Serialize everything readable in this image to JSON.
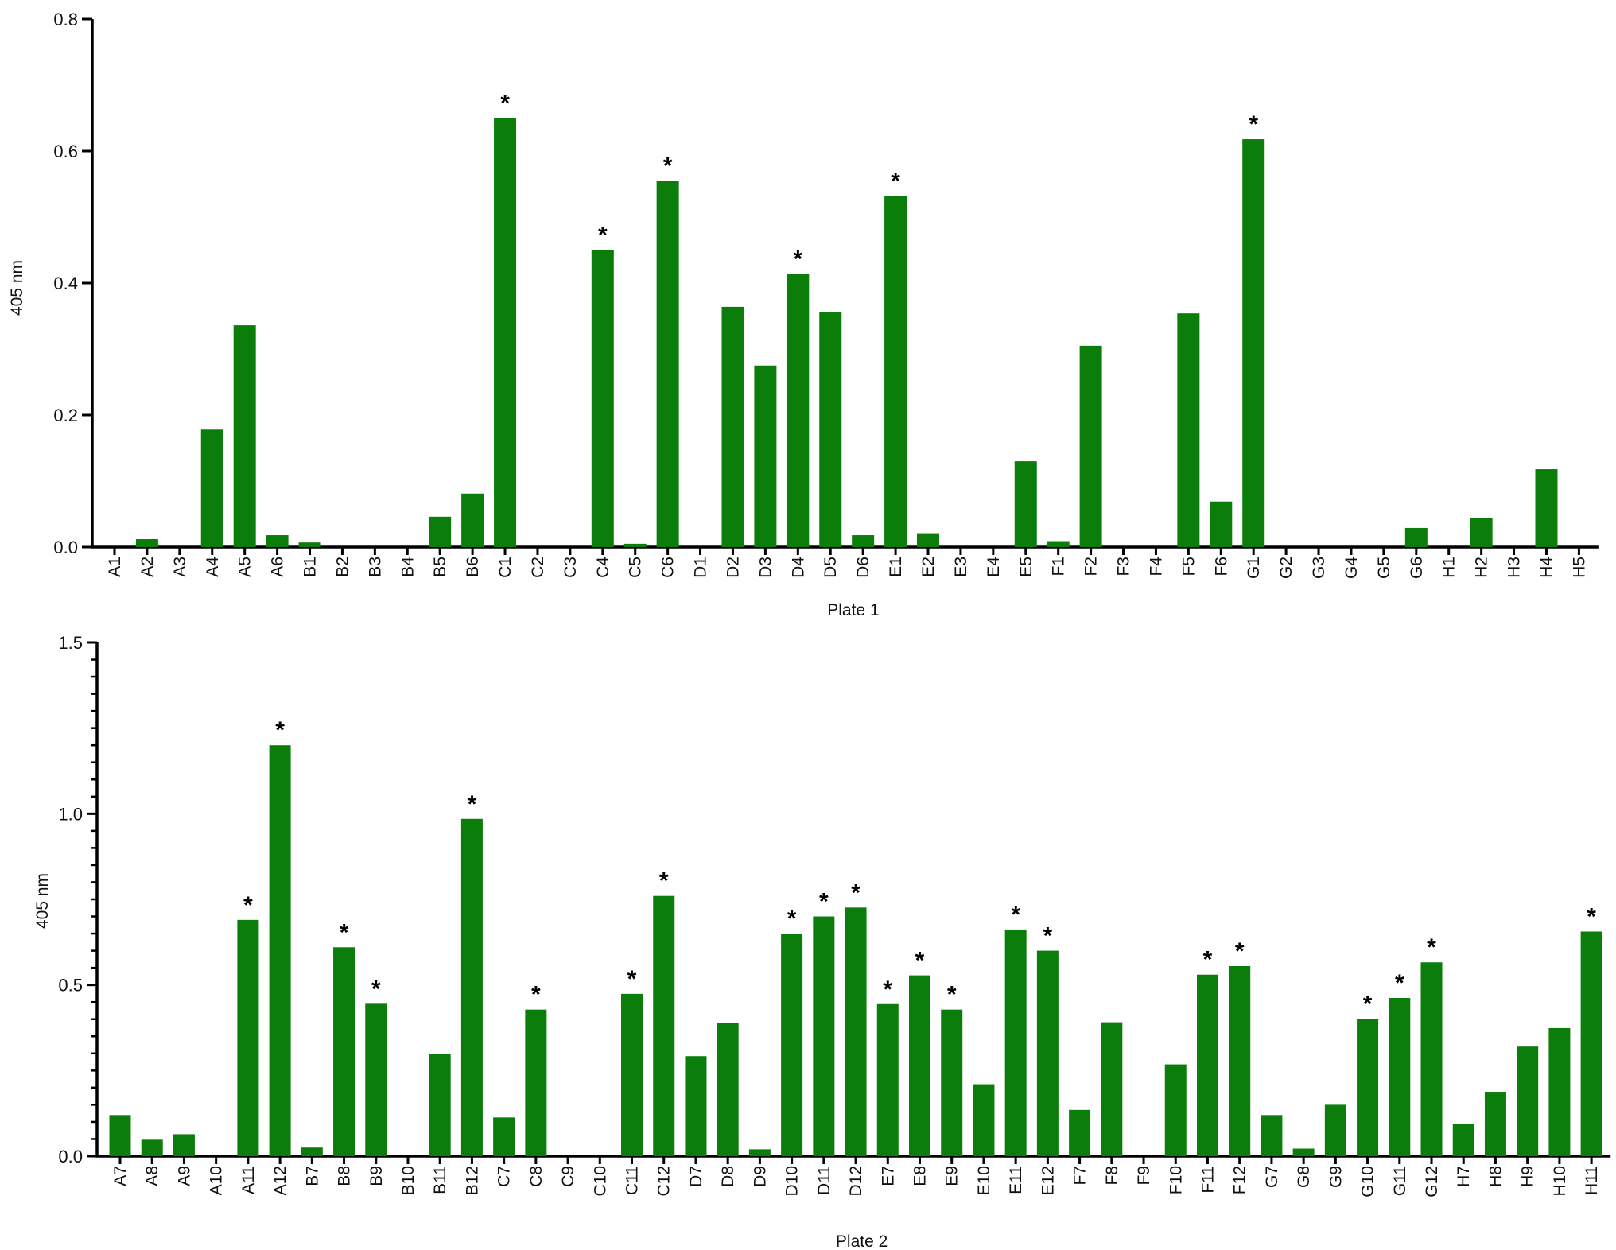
{
  "chart_data": [
    {
      "type": "bar",
      "title": "",
      "xlabel": "Plate 1",
      "ylabel": "405 nm",
      "ylim": [
        0,
        0.8
      ],
      "yticks": [
        0.0,
        0.2,
        0.4,
        0.6,
        0.8
      ],
      "ytick_labels": [
        "0.0",
        "0.2",
        "0.4",
        "0.6",
        "0.8"
      ],
      "bar_color": "#0a7d0a",
      "grid": false,
      "categories": [
        "A1",
        "A2",
        "A3",
        "A4",
        "A5",
        "A6",
        "B1",
        "B2",
        "B3",
        "B4",
        "B5",
        "B6",
        "C1",
        "C2",
        "C3",
        "C4",
        "C5",
        "C6",
        "D1",
        "D2",
        "D3",
        "D4",
        "D5",
        "D6",
        "E1",
        "E2",
        "E3",
        "E4",
        "E5",
        "F1",
        "F2",
        "F3",
        "F4",
        "F5",
        "F6",
        "G1",
        "G2",
        "G3",
        "G4",
        "G5",
        "G6",
        "H1",
        "H2",
        "H3",
        "H4",
        "H5"
      ],
      "values": [
        0,
        0.012,
        0,
        0.178,
        0.336,
        0.018,
        0.007,
        0,
        0,
        0,
        0.046,
        0.081,
        0.65,
        0,
        0,
        0.45,
        0.005,
        0.555,
        0,
        0.364,
        0.275,
        0.414,
        0.356,
        0.018,
        0.532,
        0.021,
        0,
        0,
        0.13,
        0.009,
        0.305,
        0,
        0,
        0.354,
        0.069,
        0.618,
        0,
        0,
        0,
        0,
        0.029,
        0,
        0.044,
        0,
        0.118,
        0
      ],
      "significant": [
        "C1",
        "C4",
        "C6",
        "D4",
        "E1",
        "G1"
      ],
      "significance_marker": "*"
    },
    {
      "type": "bar",
      "title": "",
      "xlabel": "Plate 2",
      "ylabel": "405 nm",
      "ylim": [
        0,
        1.5
      ],
      "yticks": [
        0.0,
        0.5,
        1.0,
        1.5
      ],
      "ytick_labels": [
        "0.0",
        "0.5",
        "1.0",
        "1.5"
      ],
      "bar_color": "#0a7d0a",
      "grid": false,
      "categories": [
        "A7",
        "A8",
        "A9",
        "A10",
        "A11",
        "A12",
        "B7",
        "B8",
        "B9",
        "B10",
        "B11",
        "B12",
        "C7",
        "C8",
        "C9",
        "C10",
        "C11",
        "C12",
        "D7",
        "D8",
        "D9",
        "D10",
        "D11",
        "D12",
        "E7",
        "E8",
        "E9",
        "E10",
        "E11",
        "E12",
        "F7",
        "F8",
        "F9",
        "F10",
        "F11",
        "F12",
        "G7",
        "G8",
        "G9",
        "G10",
        "G11",
        "G12",
        "H7",
        "H8",
        "H9",
        "H10",
        "H11"
      ],
      "values": [
        0.12,
        0.048,
        0.064,
        0,
        0.69,
        1.2,
        0.025,
        0.61,
        0.445,
        0,
        0.298,
        0.985,
        0.113,
        0.428,
        0,
        0,
        0.474,
        0.76,
        0.292,
        0.39,
        0.02,
        0.65,
        0.7,
        0.726,
        0.444,
        0.528,
        0.428,
        0.21,
        0.662,
        0.6,
        0.135,
        0.391,
        0,
        0.268,
        0.53,
        0.555,
        0.12,
        0.022,
        0.15,
        0.4,
        0.462,
        0.566,
        0.095,
        0.188,
        0.32,
        0.374,
        0.656
      ],
      "significant": [
        "A11",
        "A12",
        "B8",
        "B9",
        "B12",
        "C8",
        "C11",
        "C12",
        "D10",
        "D11",
        "D12",
        "E7",
        "E8",
        "E9",
        "E11",
        "E12",
        "F11",
        "F12",
        "G10",
        "G11",
        "G12",
        "H11"
      ],
      "significance_marker": "*"
    }
  ]
}
